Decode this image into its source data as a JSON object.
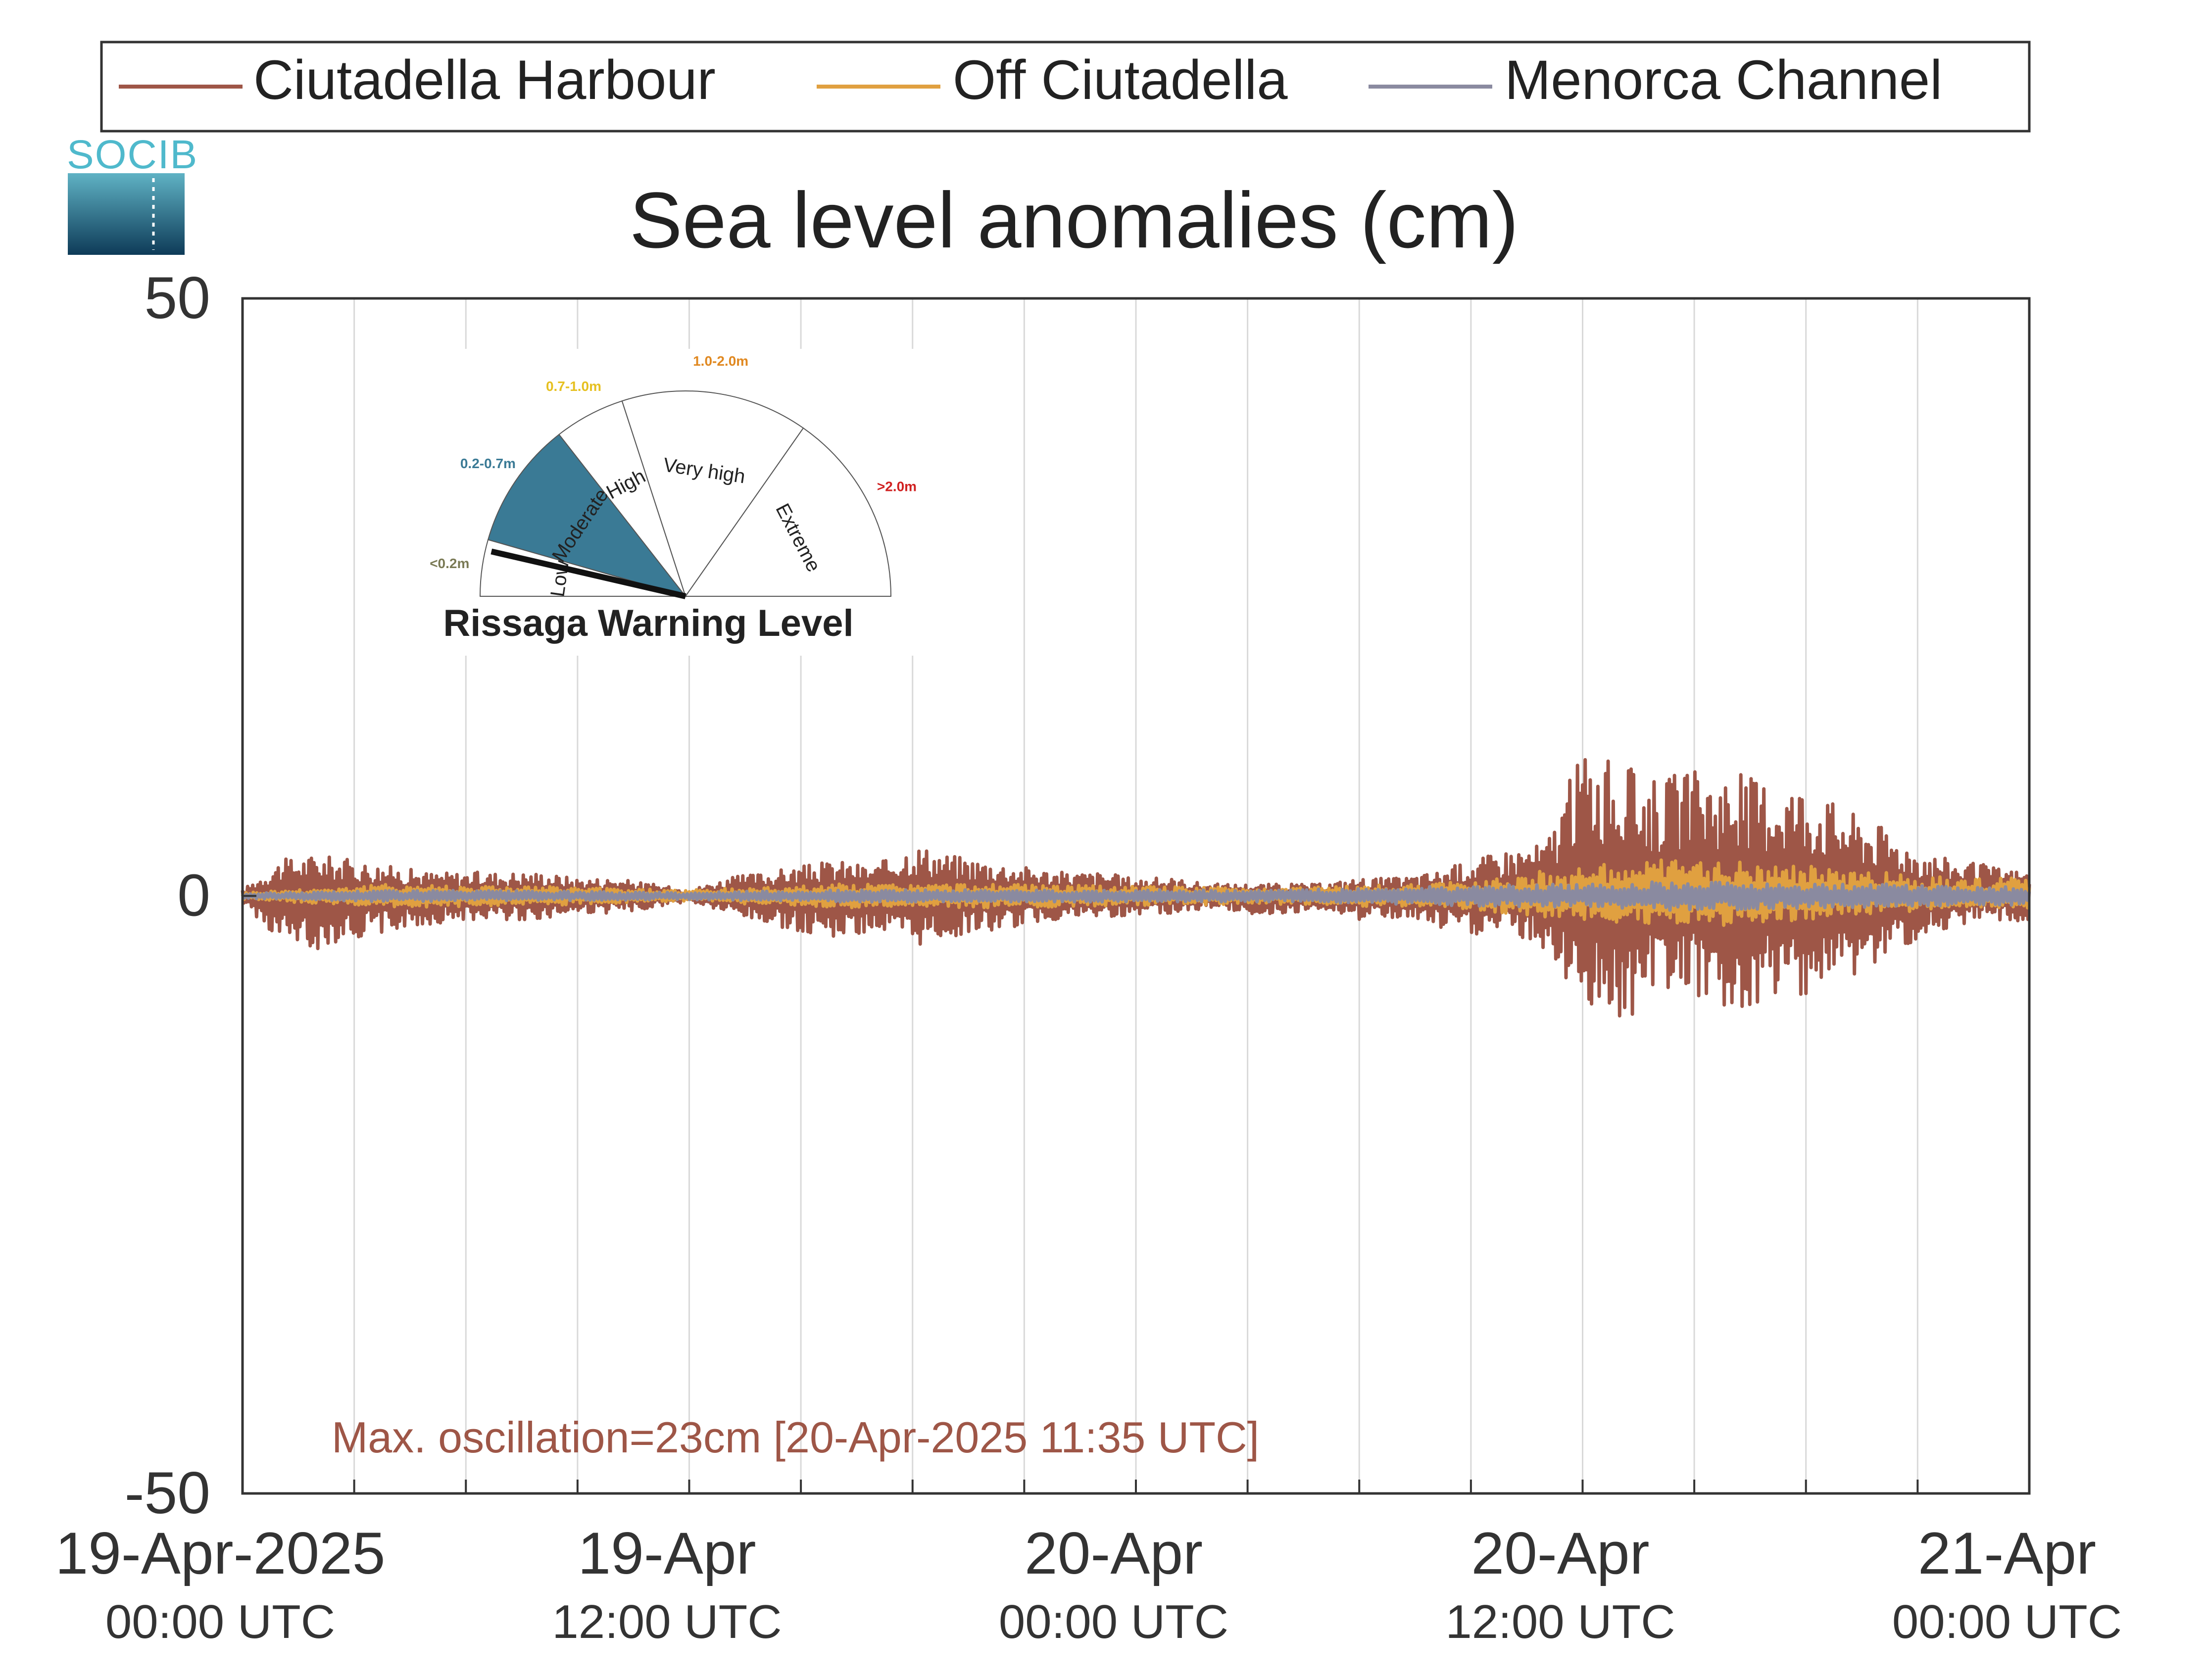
{
  "chart_data": {
    "type": "line",
    "title": "Sea level anomalies (cm)",
    "ylim": [
      -50,
      50
    ],
    "yticks": [
      {
        "value": 50,
        "label": "50"
      },
      {
        "value": 0,
        "label": "0"
      },
      {
        "value": -50,
        "label": "-50"
      }
    ],
    "xlim_hours": [
      0,
      48
    ],
    "xticks": [
      {
        "hour": 0,
        "date": "19-Apr-2025",
        "time": "00:00 UTC"
      },
      {
        "hour": 12,
        "date": "19-Apr",
        "time": "12:00 UTC"
      },
      {
        "hour": 24,
        "date": "20-Apr",
        "time": "00:00 UTC"
      },
      {
        "hour": 36,
        "date": "20-Apr",
        "time": "12:00 UTC"
      },
      {
        "hour": 48,
        "date": "21-Apr",
        "time": "00:00 UTC"
      }
    ],
    "grid": true,
    "legend_position": "top",
    "series": [
      {
        "name": "Ciutadella Harbour",
        "color": "#9e5647",
        "envelope_hours": [
          0,
          1,
          2,
          3,
          4,
          5,
          6,
          7,
          8,
          9,
          10,
          11,
          12,
          13,
          14,
          15,
          16,
          17,
          18,
          19,
          20,
          21,
          22,
          23,
          24,
          25,
          26,
          27,
          28,
          29,
          30,
          31,
          32,
          33,
          34,
          35,
          36,
          37,
          38,
          39,
          40,
          41,
          42,
          43,
          44,
          45,
          46,
          47,
          48
        ],
        "envelope_max": [
          0.5,
          3,
          3.5,
          3,
          2.5,
          2,
          2,
          2,
          2,
          1.5,
          1.5,
          1,
          0.5,
          1.5,
          2,
          2.5,
          3,
          2.5,
          4.5,
          3.5,
          3,
          2.5,
          2,
          2,
          1.5,
          1.5,
          1,
          1,
          1,
          1,
          1.5,
          1.5,
          2,
          3,
          4,
          4.5,
          12.5,
          11,
          10,
          10.5,
          10.5,
          10,
          9.5,
          7.5,
          6,
          4,
          3,
          2.5,
          2
        ],
        "envelope_min": [
          -0.5,
          -4,
          -4.5,
          -3.5,
          -3,
          -2.5,
          -2,
          -2,
          -2,
          -1.5,
          -1.5,
          -1,
          -0.5,
          -1.5,
          -2.5,
          -3,
          -3.5,
          -3,
          -4.5,
          -3.5,
          -3,
          -2.5,
          -2,
          -2,
          -1.5,
          -1.5,
          -1,
          -1.5,
          -1.5,
          -1,
          -2,
          -2,
          -2.5,
          -3.5,
          -3,
          -4.5,
          -9,
          -11,
          -8,
          -8.5,
          -9.5,
          -9,
          -8.5,
          -7.5,
          -6,
          -3.5,
          -2.5,
          -2,
          -2.5
        ],
        "max_oscillation_cm": 23,
        "max_oscillation_text": "Max. oscillation=23cm [20-Apr-2025 11:35 UTC]"
      },
      {
        "name": "Off Ciutadella",
        "color": "#e0a040",
        "envelope_hours": [
          0,
          4,
          8,
          12,
          16,
          20,
          24,
          28,
          32,
          36,
          38,
          40,
          42,
          44,
          46,
          48
        ],
        "envelope_max": [
          0.3,
          1,
          0.8,
          0.5,
          1,
          1,
          0.8,
          0.7,
          1,
          2.5,
          3,
          3,
          2.5,
          2,
          1.5,
          1.5
        ],
        "envelope_min": [
          -0.3,
          -1,
          -0.8,
          -0.5,
          -1,
          -1,
          -0.8,
          -0.7,
          -1,
          -2,
          -2.5,
          -2.5,
          -2,
          -1.5,
          -1,
          -1
        ]
      },
      {
        "name": "Menorca Channel",
        "color": "#8a8aa0",
        "envelope_hours": [
          0,
          4,
          8,
          12,
          16,
          20,
          24,
          28,
          32,
          36,
          38,
          40,
          42,
          44,
          46,
          48
        ],
        "envelope_max": [
          0.2,
          0.5,
          0.4,
          0.3,
          0.5,
          0.5,
          0.5,
          0.5,
          0.8,
          1,
          1.2,
          1.2,
          1,
          1,
          0.8,
          0.8
        ],
        "envelope_min": [
          -0.2,
          -0.5,
          -0.4,
          -0.3,
          -0.5,
          -0.5,
          -0.5,
          -0.5,
          -0.8,
          -1,
          -1.2,
          -1.2,
          -1,
          -1,
          -0.8,
          -0.8
        ]
      }
    ]
  },
  "logo": {
    "text": "SOCIB"
  },
  "gauge": {
    "title": "Rissaga Warning Level",
    "current_level": "Moderate",
    "segments": [
      {
        "name": "Low",
        "range": "<0.2m",
        "range_color": "#7a7a55",
        "fill": "#ffffff"
      },
      {
        "name": "Moderate",
        "range": "0.2-0.7m",
        "range_color": "#3a7a95",
        "fill": "#3a7a95"
      },
      {
        "name": "High",
        "range": "0.7-1.0m",
        "range_color": "#e6c020",
        "fill": "#ffffff"
      },
      {
        "name": "Very high",
        "range": "1.0-2.0m",
        "range_color": "#e08820",
        "fill": "#ffffff"
      },
      {
        "name": "Extreme",
        "range": ">2.0m",
        "range_color": "#d02020",
        "fill": "#ffffff"
      }
    ]
  }
}
